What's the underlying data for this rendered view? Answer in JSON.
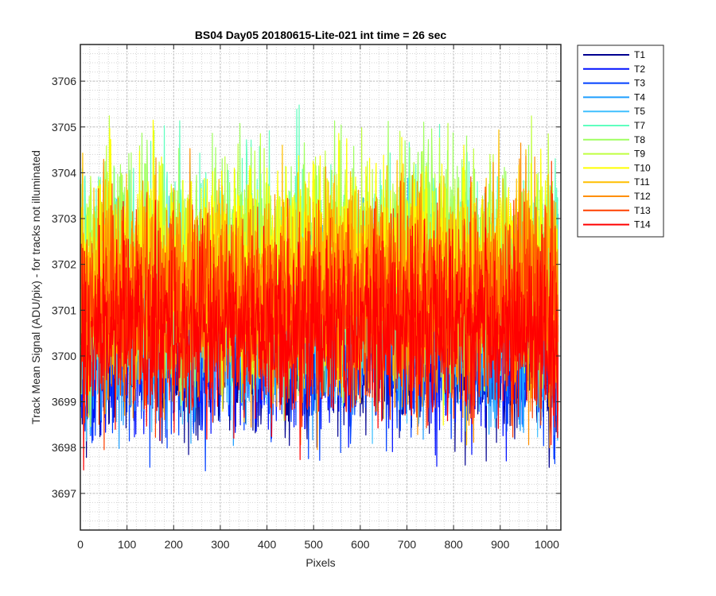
{
  "chart_data": {
    "type": "line",
    "title": "BS04 Day05 20180615-Lite-021 int time = 26 sec",
    "xlabel": "Pixels",
    "ylabel": "Track Mean Signal (ADU/pix) - for tracks not illuminated",
    "xlim": [
      0,
      1030
    ],
    "ylim": [
      3696.2,
      3706.8
    ],
    "xticks": [
      0,
      100,
      200,
      300,
      400,
      500,
      600,
      700,
      800,
      900,
      1000
    ],
    "yticks": [
      3697,
      3698,
      3699,
      3700,
      3701,
      3702,
      3703,
      3704,
      3705,
      3706
    ],
    "grid": "major and minor, dotted",
    "legend_position": "outside top-right",
    "n_points": 1024,
    "series": [
      {
        "name": "T1",
        "color": "#00008f",
        "mean": 3700.1,
        "spread": 0.9
      },
      {
        "name": "T2",
        "color": "#0010ff",
        "mean": 3700.2,
        "spread": 0.9
      },
      {
        "name": "T3",
        "color": "#0040ff",
        "mean": 3700.3,
        "spread": 0.95
      },
      {
        "name": "T4",
        "color": "#1f9fff",
        "mean": 3700.6,
        "spread": 1.0
      },
      {
        "name": "T5",
        "color": "#40c0ff",
        "mean": 3701.0,
        "spread": 1.05
      },
      {
        "name": "T7",
        "color": "#5fffbf",
        "mean": 3701.9,
        "spread": 1.2
      },
      {
        "name": "T8",
        "color": "#9fff60",
        "mean": 3702.1,
        "spread": 1.2
      },
      {
        "name": "T9",
        "color": "#bfff40",
        "mean": 3702.0,
        "spread": 1.15
      },
      {
        "name": "T10",
        "color": "#ffff00",
        "mean": 3701.9,
        "spread": 1.15
      },
      {
        "name": "T11",
        "color": "#ffbf00",
        "mean": 3701.6,
        "spread": 1.15
      },
      {
        "name": "T12",
        "color": "#ff8f00",
        "mean": 3701.4,
        "spread": 1.15
      },
      {
        "name": "T13",
        "color": "#ff4000",
        "mean": 3701.0,
        "spread": 1.1
      },
      {
        "name": "T14",
        "color": "#ff0000",
        "mean": 3700.6,
        "spread": 1.0
      }
    ]
  }
}
